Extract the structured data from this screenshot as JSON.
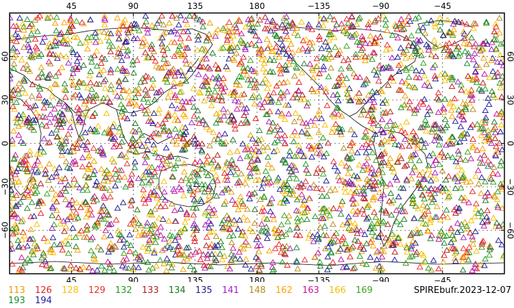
{
  "map": {
    "label": "SPIREbufr.2023-12-07",
    "lon_ticks": [
      "45",
      "90",
      "135",
      "180",
      "−135",
      "−90",
      "−45"
    ],
    "lat_ticks": [
      "60",
      "30",
      "0",
      "−30",
      "−60"
    ],
    "projection": "cylindrical equidistant, centered on 180",
    "lon_range": [
      0,
      360
    ],
    "lat_range": [
      -90,
      90
    ],
    "grid": true,
    "symbol": "open-triangle"
  },
  "legend": {
    "row1": [
      {
        "id": "113",
        "color": "#e8a000"
      },
      {
        "id": "126",
        "color": "#e81e1e"
      },
      {
        "id": "128",
        "color": "#ffc000"
      },
      {
        "id": "129",
        "color": "#e83030"
      },
      {
        "id": "132",
        "color": "#1e9e1e"
      },
      {
        "id": "133",
        "color": "#b01e1e"
      },
      {
        "id": "134",
        "color": "#1e781e"
      },
      {
        "id": "135",
        "color": "#1e1e8c"
      },
      {
        "id": "141",
        "color": "#a01ec8"
      },
      {
        "id": "148",
        "color": "#b48c1e"
      },
      {
        "id": "162",
        "color": "#ffa000"
      },
      {
        "id": "163",
        "color": "#c8149e"
      },
      {
        "id": "166",
        "color": "#f0c000"
      },
      {
        "id": "169",
        "color": "#3ca01e"
      }
    ],
    "row2": [
      {
        "id": "193",
        "color": "#1e8c32"
      },
      {
        "id": "194",
        "color": "#1e1ea0"
      }
    ]
  }
}
